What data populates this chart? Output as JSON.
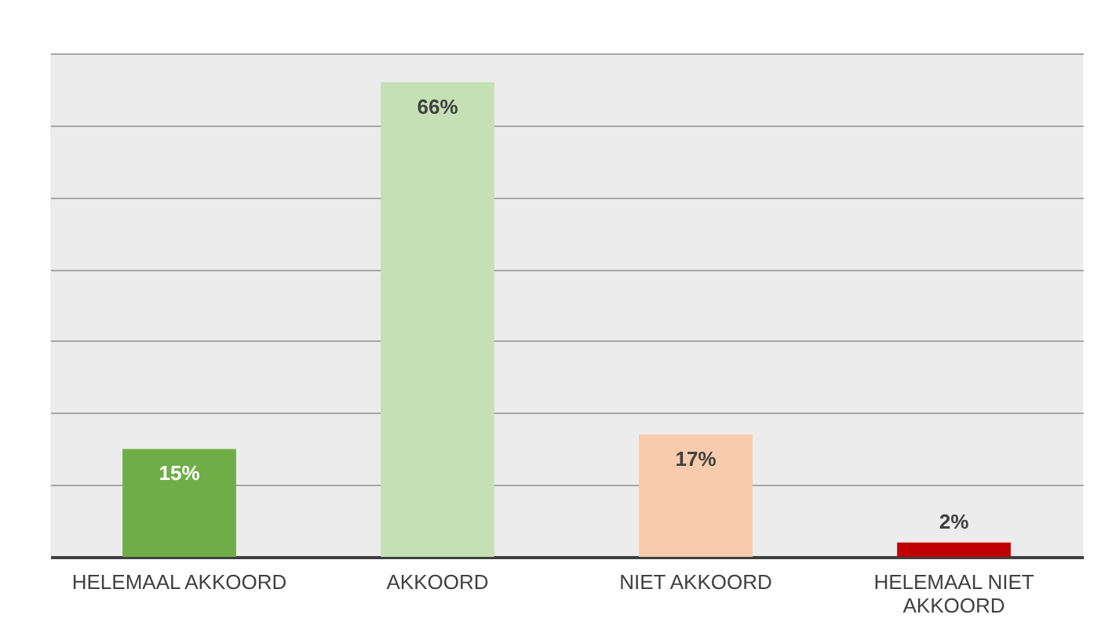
{
  "chart_data": {
    "type": "bar",
    "categories": [
      "HELEMAAL AKKOORD",
      "AKKOORD",
      "NIET AKKOORD",
      "HELEMAAL NIET AKKOORD"
    ],
    "values": [
      15,
      66,
      17,
      2
    ],
    "value_labels": [
      "15%",
      "66%",
      "17%",
      "2%"
    ],
    "colors": [
      "#70ad47",
      "#c5e0b4",
      "#f8cbad",
      "#c00000"
    ],
    "grid": "y",
    "tick_labels": "x"
  }
}
